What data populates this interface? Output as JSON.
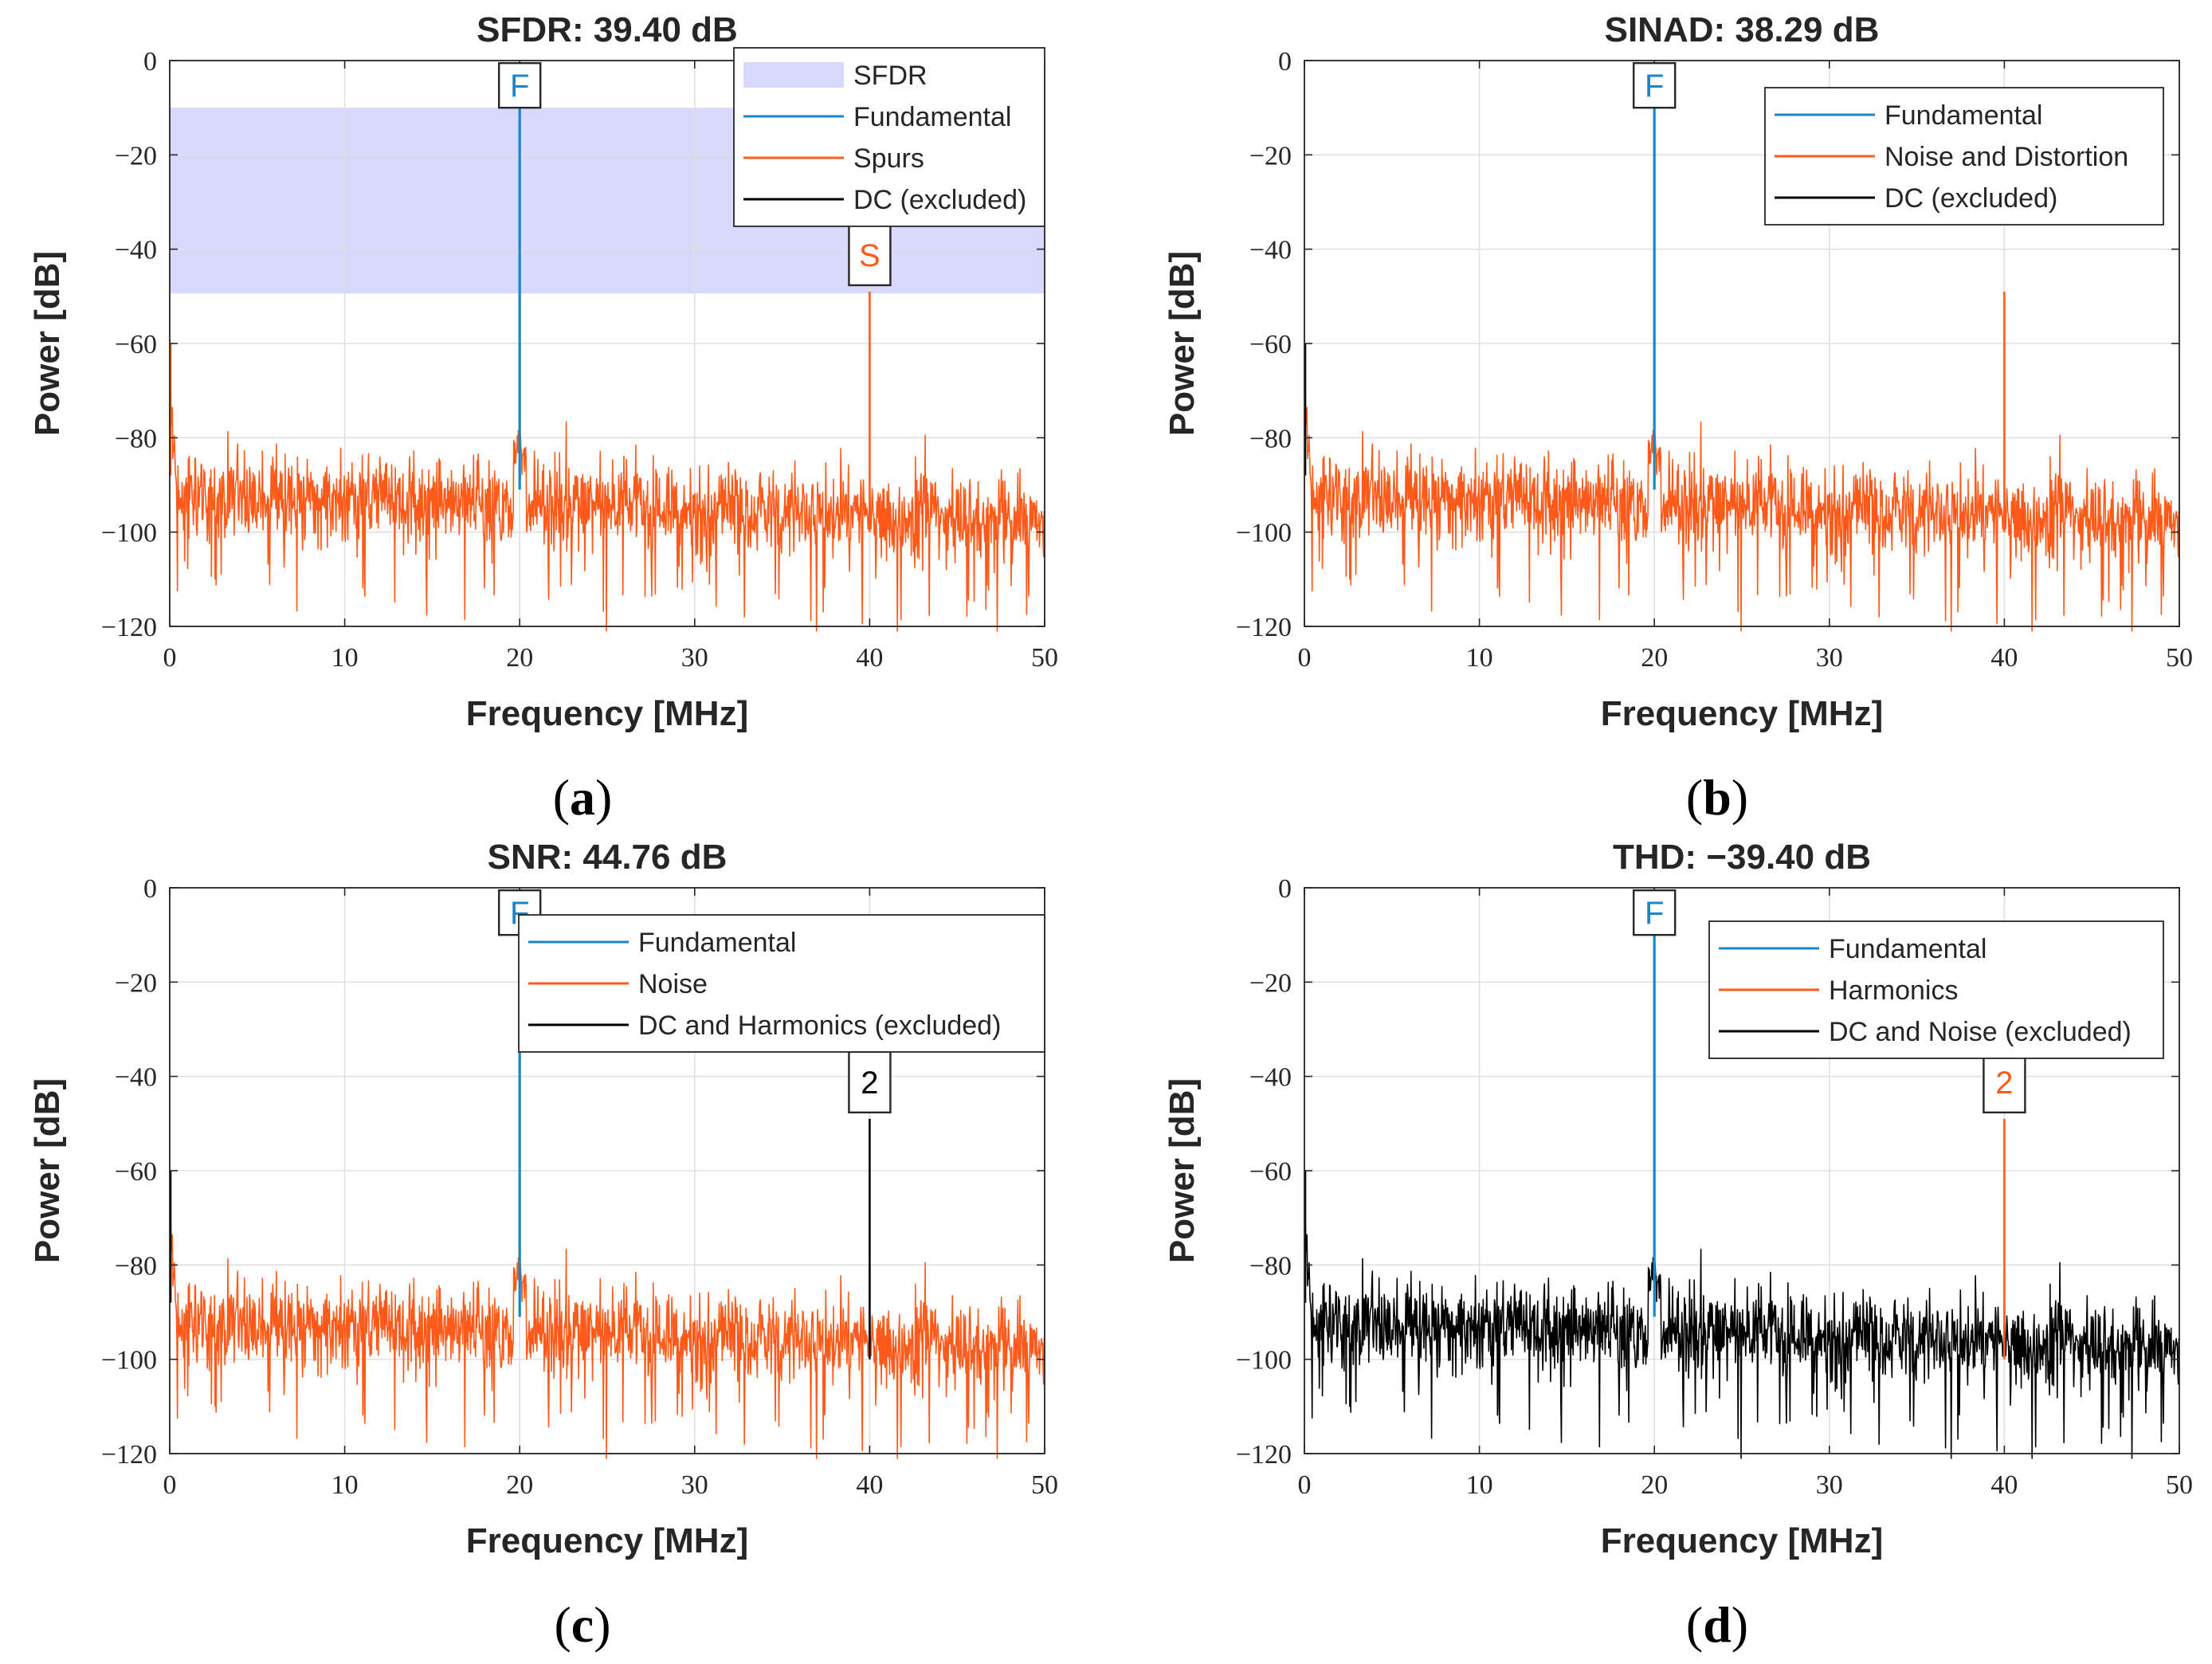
{
  "chart_data": [
    {
      "id": "a",
      "type": "line",
      "subfigure_label": "a",
      "title": "SFDR:  39.40 dB",
      "xlabel": "Frequency [MHz]",
      "ylabel": "Power [dB]",
      "xlim": [
        0,
        50
      ],
      "ylim": [
        -120,
        0
      ],
      "xticks": [
        0,
        10,
        20,
        30,
        40,
        50
      ],
      "yticks": [
        0,
        -20,
        -40,
        -60,
        -80,
        -100,
        -120
      ],
      "ytick_labels": [
        "0",
        "−20",
        "−40",
        "−60",
        "−80",
        "−100",
        "−120"
      ],
      "grid": true,
      "noise_color": "#ff5a1a",
      "dc_color": "#ff5a1a",
      "fundamental": {
        "freq": 20,
        "power": -10,
        "color": "#1a86c8"
      },
      "spur": {
        "freq": 40,
        "power": -49,
        "color": "#ff5a1a"
      },
      "shaded_band": {
        "from": -49.4,
        "to": -10,
        "color": "#d8d8fb"
      },
      "markers": [
        {
          "text": "F",
          "freq": 20,
          "color": "#1a86c8"
        },
        {
          "text": "S",
          "freq": 40,
          "color": "#ff5a1a"
        }
      ],
      "legend": {
        "position": "top-right",
        "entries": [
          {
            "label": "SFDR",
            "kind": "patch",
            "color": "#d8d8fb"
          },
          {
            "label": "Fundamental",
            "kind": "line",
            "color": "#1a86c8"
          },
          {
            "label": "Spurs",
            "kind": "line",
            "color": "#ff5a1a"
          },
          {
            "label": "DC (excluded)",
            "kind": "line",
            "color": "#000000"
          }
        ]
      }
    },
    {
      "id": "b",
      "type": "line",
      "subfigure_label": "b",
      "title": "SINAD:  38.29 dB",
      "xlabel": "Frequency [MHz]",
      "ylabel": "Power [dB]",
      "xlim": [
        0,
        50
      ],
      "ylim": [
        -120,
        0
      ],
      "xticks": [
        0,
        10,
        20,
        30,
        40,
        50
      ],
      "yticks": [
        0,
        -20,
        -40,
        -60,
        -80,
        -100,
        -120
      ],
      "ytick_labels": [
        "0",
        "−20",
        "−40",
        "−60",
        "−80",
        "−100",
        "−120"
      ],
      "grid": true,
      "noise_color": "#ff5a1a",
      "dc_color": "#000000",
      "fundamental": {
        "freq": 20,
        "power": -10,
        "color": "#1a86c8"
      },
      "spur": {
        "freq": 40,
        "power": -49,
        "color": "#ff5a1a"
      },
      "markers": [
        {
          "text": "F",
          "freq": 20,
          "color": "#1a86c8"
        }
      ],
      "legend": {
        "position": "top-right",
        "entries": [
          {
            "label": "Fundamental",
            "kind": "line",
            "color": "#1a86c8"
          },
          {
            "label": "Noise and Distortion",
            "kind": "line",
            "color": "#ff5a1a"
          },
          {
            "label": "DC (excluded)",
            "kind": "line",
            "color": "#000000"
          }
        ]
      }
    },
    {
      "id": "c",
      "type": "line",
      "subfigure_label": "c",
      "title": "SNR:  44.76 dB",
      "xlabel": "Frequency [MHz]",
      "ylabel": "Power [dB]",
      "xlim": [
        0,
        50
      ],
      "ylim": [
        -120,
        0
      ],
      "xticks": [
        0,
        10,
        20,
        30,
        40,
        50
      ],
      "yticks": [
        0,
        -20,
        -40,
        -60,
        -80,
        -100,
        -120
      ],
      "ytick_labels": [
        "0",
        "−20",
        "−40",
        "−60",
        "−80",
        "−100",
        "−120"
      ],
      "grid": true,
      "noise_color": "#ff5a1a",
      "dc_color": "#000000",
      "fundamental": {
        "freq": 20,
        "power": -10,
        "color": "#1a86c8"
      },
      "spur": {
        "freq": 40,
        "power": -49,
        "color": "#000000"
      },
      "markers": [
        {
          "text": "F",
          "freq": 20,
          "color": "#1a86c8"
        },
        {
          "text": "2",
          "freq": 40,
          "color": "#000000"
        }
      ],
      "legend": {
        "position": "top-right",
        "entries": [
          {
            "label": "Fundamental",
            "kind": "line",
            "color": "#1a86c8"
          },
          {
            "label": "Noise",
            "kind": "line",
            "color": "#ff5a1a"
          },
          {
            "label": "DC and Harmonics (excluded)",
            "kind": "line",
            "color": "#000000"
          }
        ]
      }
    },
    {
      "id": "d",
      "type": "line",
      "subfigure_label": "d",
      "title": "THD:  −39.40 dB",
      "xlabel": "Frequency [MHz]",
      "ylabel": "Power [dB]",
      "xlim": [
        0,
        50
      ],
      "ylim": [
        -120,
        0
      ],
      "xticks": [
        0,
        10,
        20,
        30,
        40,
        50
      ],
      "yticks": [
        0,
        -20,
        -40,
        -60,
        -80,
        -100,
        -120
      ],
      "ytick_labels": [
        "0",
        "−20",
        "−40",
        "−60",
        "−80",
        "−100",
        "−120"
      ],
      "grid": true,
      "noise_color": "#000000",
      "dc_color": "#000000",
      "fundamental": {
        "freq": 20,
        "power": -10,
        "color": "#1a86c8"
      },
      "spur": {
        "freq": 40,
        "power": -49,
        "color": "#ff5a1a"
      },
      "markers": [
        {
          "text": "F",
          "freq": 20,
          "color": "#1a86c8"
        },
        {
          "text": "2",
          "freq": 40,
          "color": "#ff5a1a"
        }
      ],
      "legend": {
        "position": "top-right",
        "entries": [
          {
            "label": "Fundamental",
            "kind": "line",
            "color": "#1a86c8"
          },
          {
            "label": "Harmonics",
            "kind": "line",
            "color": "#ff5a1a"
          },
          {
            "label": "DC and Noise (excluded)",
            "kind": "line",
            "color": "#000000"
          }
        ]
      }
    }
  ]
}
